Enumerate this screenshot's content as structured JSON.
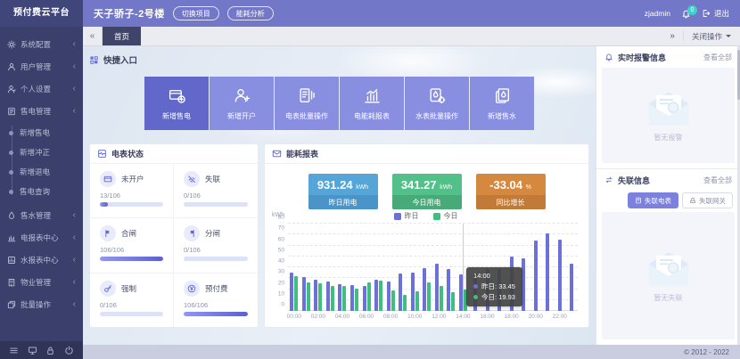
{
  "app": {
    "logo": "预付费云平台",
    "copyright": "© 2012 - 2022"
  },
  "colors": {
    "accent": "#6a70d0",
    "sidebar_bg": "#3a3f6b",
    "header_bg": "#7277c8",
    "series_yesterday": "#6b71d8",
    "series_today": "#3fbe7e",
    "stat_blue": "#55a5d9",
    "stat_green": "#53bf89",
    "stat_orange": "#d5883f",
    "badge_teal": "#3fd0c9"
  },
  "header": {
    "title": "天子骄子-2号楼",
    "buttons": [
      {
        "label": "切换项目"
      },
      {
        "label": "能耗分析"
      }
    ],
    "username": "zjadmin",
    "badge": "0",
    "logout_label": "退出"
  },
  "tabbar": {
    "collapse": "«",
    "expand": "»",
    "active_tab": "首页",
    "close_menu": "关闭操作"
  },
  "sidebar": {
    "items": [
      {
        "label": "系统配置",
        "icon": "gear"
      },
      {
        "label": "用户管理",
        "icon": "user"
      },
      {
        "label": "个人设置",
        "icon": "person"
      },
      {
        "label": "售电管理",
        "icon": "sell",
        "children": [
          "新增售电",
          "新增冲正",
          "新增退电",
          "售电查询"
        ]
      },
      {
        "label": "售水管理",
        "icon": "water"
      },
      {
        "label": "电报表中心",
        "icon": "report"
      },
      {
        "label": "水报表中心",
        "icon": "report2"
      },
      {
        "label": "物业管理",
        "icon": "building"
      },
      {
        "label": "批量操作",
        "icon": "batch"
      }
    ],
    "footer_icons": [
      "menu",
      "monitor",
      "lock",
      "power"
    ]
  },
  "quick_entry": {
    "title": "快捷入口",
    "buttons": [
      {
        "label": "新增售电",
        "icon": "cardadd"
      },
      {
        "label": "新增开户",
        "icon": "useradd"
      },
      {
        "label": "电表批量操作",
        "icon": "meterops"
      },
      {
        "label": "电能耗报表",
        "icon": "chartbars"
      },
      {
        "label": "水表批量操作",
        "icon": "watergear"
      },
      {
        "label": "新增售水",
        "icon": "waterpages"
      }
    ]
  },
  "meter_status": {
    "title": "电表状态",
    "cells": [
      {
        "label": "未开户",
        "value": "13/106",
        "pct": 12,
        "icon": "card"
      },
      {
        "label": "失联",
        "value": "0/106",
        "pct": 0,
        "icon": "offline"
      },
      {
        "label": "合闸",
        "value": "106/106",
        "pct": 100,
        "icon": "switchon"
      },
      {
        "label": "分闸",
        "value": "0/106",
        "pct": 0,
        "icon": "switchoff"
      },
      {
        "label": "强制",
        "value": "0/106",
        "pct": 0,
        "icon": "key"
      },
      {
        "label": "预付费",
        "value": "106/106",
        "pct": 100,
        "icon": "prepaid"
      }
    ]
  },
  "energy_report": {
    "title": "能耗报表",
    "stats": [
      {
        "value": "931.24",
        "unit": "kWh",
        "label": "昨日用电",
        "bg": "#55a5d9",
        "label_bg": "#4b94c7"
      },
      {
        "value": "341.27",
        "unit": "kWh",
        "label": "今日用电",
        "bg": "#53bf89",
        "label_bg": "#49aa79"
      },
      {
        "value": "-33.04",
        "unit": "%",
        "label": "同比增长",
        "bg": "#d5883f",
        "label_bg": "#c17a37"
      }
    ]
  },
  "chart_data": {
    "type": "bar",
    "title": "",
    "ylabel": "kWh",
    "ylim": [
      0,
      80
    ],
    "yticks": [
      0,
      10,
      20,
      30,
      40,
      50,
      60,
      70,
      80
    ],
    "grid": true,
    "legend_position": "top",
    "x": [
      "00:00",
      "01:00",
      "02:00",
      "03:00",
      "04:00",
      "05:00",
      "06:00",
      "07:00",
      "08:00",
      "09:00",
      "10:00",
      "11:00",
      "12:00",
      "13:00",
      "14:00",
      "15:00",
      "16:00",
      "17:00",
      "18:00",
      "19:00",
      "20:00",
      "21:00",
      "22:00",
      "23:00"
    ],
    "series": [
      {
        "name": "昨日",
        "color": "#6b71d8",
        "values": [
          35.5,
          31,
          28.5,
          27,
          24.5,
          24,
          23,
          28.5,
          27,
          34.5,
          35.5,
          39,
          43,
          38.5,
          33.45,
          34,
          38.5,
          38,
          50,
          48.5,
          64.5,
          71,
          65.5,
          43.5
        ]
      },
      {
        "name": "今日",
        "color": "#3fbe7e",
        "values": [
          32,
          26,
          25.5,
          22.5,
          22.5,
          20.5,
          26.5,
          28,
          19,
          14.5,
          18,
          26.5,
          22.5,
          17.5,
          19.93,
          null,
          null,
          null,
          null,
          null,
          null,
          null,
          null,
          null
        ]
      }
    ],
    "tooltip": {
      "x": "14:00",
      "rows": [
        {
          "name": "昨日",
          "value": "33.45"
        },
        {
          "name": "今日",
          "value": "19.93"
        }
      ]
    }
  },
  "alarm_panel": {
    "title": "实时报警信息",
    "view_all": "查看全部",
    "empty_text": "暂无报警"
  },
  "offline_panel": {
    "title": "失联信息",
    "view_all": "查看全部",
    "buttons": [
      {
        "label": "失联电表",
        "icon": "msmall",
        "active": true
      },
      {
        "label": "失联网关",
        "icon": "gwsmall",
        "active": false
      }
    ],
    "empty_text": "暂无失联"
  }
}
